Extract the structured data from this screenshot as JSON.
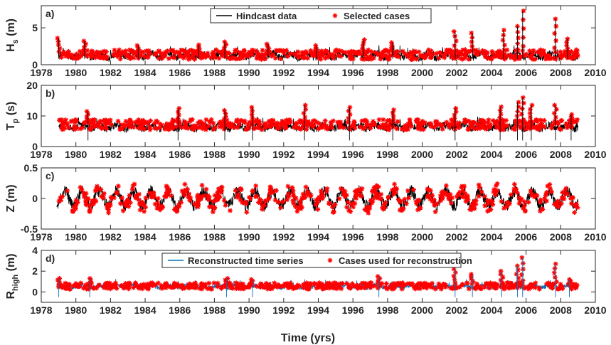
{
  "figure": {
    "xlabel": "Time (yrs)"
  },
  "colors": {
    "hindcast": "#000000",
    "selected": "#ff0000",
    "reconstructed": "#0072bd",
    "axes": "#262626"
  },
  "chart_data": [
    {
      "panel_label": "a)",
      "type": "line",
      "ylabel_main": "H",
      "ylabel_sub": "s",
      "ylabel_unit": "(m)",
      "xlim": [
        1978,
        2010
      ],
      "ylim": [
        0,
        8
      ],
      "xticks": [
        1978,
        1980,
        1982,
        1984,
        1986,
        1988,
        1990,
        1992,
        1994,
        1996,
        1998,
        2000,
        2002,
        2004,
        2006,
        2008,
        2010
      ],
      "yticks": [
        0,
        5
      ],
      "legend_position": "top-center",
      "series": [
        {
          "name": "Hindcast data",
          "kind": "line",
          "color": "#000000",
          "range": [
            1979,
            2009
          ],
          "base": 1.2,
          "amp": 1.0,
          "seasonal": 0.3
        },
        {
          "name": "Selected cases",
          "kind": "markers",
          "color": "#ff0000",
          "range": [
            1979,
            2009
          ],
          "base": 1.3,
          "amp": 1.2
        }
      ],
      "peaks": [
        [
          1979.0,
          3.6
        ],
        [
          1980.5,
          3.2
        ],
        [
          1983.6,
          2.6
        ],
        [
          1987.1,
          2.7
        ],
        [
          1988.6,
          3.1
        ],
        [
          1991.1,
          2.8
        ],
        [
          1993.9,
          2.6
        ],
        [
          1996.6,
          3.4
        ],
        [
          1998.3,
          3.0
        ],
        [
          2001.9,
          4.5
        ],
        [
          2002.9,
          4.3
        ],
        [
          2004.7,
          4.7
        ],
        [
          2005.5,
          5.2
        ],
        [
          2005.8,
          7.3
        ],
        [
          2007.7,
          6.2
        ],
        [
          2008.4,
          3.5
        ]
      ]
    },
    {
      "panel_label": "b)",
      "type": "line",
      "ylabel_main": "T",
      "ylabel_sub": "p",
      "ylabel_unit": "(s)",
      "xlim": [
        1978,
        2010
      ],
      "ylim": [
        0,
        20
      ],
      "xticks": [
        1978,
        1980,
        1982,
        1984,
        1986,
        1988,
        1990,
        1992,
        1994,
        1996,
        1998,
        2000,
        2002,
        2004,
        2006,
        2008,
        2010
      ],
      "yticks": [
        0,
        10,
        20
      ],
      "series": [
        {
          "name": "Hindcast data",
          "kind": "line",
          "color": "#000000",
          "range": [
            1979,
            2009
          ],
          "base": 6.3,
          "amp": 2.5,
          "seasonal": 0.6
        },
        {
          "name": "Selected cases",
          "kind": "markers",
          "color": "#ff0000",
          "range": [
            1979,
            2009
          ],
          "base": 7.0,
          "amp": 3.0
        }
      ],
      "peaks": [
        [
          1980.7,
          11.5
        ],
        [
          1985.9,
          12.5
        ],
        [
          1988.6,
          11.8
        ],
        [
          1990.2,
          12.8
        ],
        [
          1993.2,
          13.5
        ],
        [
          1995.8,
          12.8
        ],
        [
          1998.3,
          12.0
        ],
        [
          2001.9,
          12.5
        ],
        [
          2004.5,
          13.0
        ],
        [
          2005.5,
          14.5
        ],
        [
          2005.8,
          16.0
        ],
        [
          2006.3,
          13.5
        ],
        [
          2007.7,
          13.5
        ],
        [
          2008.6,
          10.5
        ]
      ]
    },
    {
      "panel_label": "c)",
      "type": "line",
      "ylabel_main": "Z",
      "ylabel_sub": "",
      "ylabel_unit": "(m)",
      "xlim": [
        1978,
        2010
      ],
      "ylim": [
        -0.5,
        0.5
      ],
      "xticks": [
        1978,
        1980,
        1982,
        1984,
        1986,
        1988,
        1990,
        1992,
        1994,
        1996,
        1998,
        2000,
        2002,
        2004,
        2006,
        2008,
        2010
      ],
      "yticks": [
        -0.5,
        0,
        0.5
      ],
      "series": [
        {
          "name": "Hindcast data",
          "kind": "line",
          "color": "#000000",
          "range": [
            1978.9,
            2009
          ],
          "seasonal_amp": 0.12,
          "noise": 0.1
        },
        {
          "name": "Selected cases",
          "kind": "markers",
          "color": "#ff0000",
          "range": [
            1978.9,
            2009
          ],
          "seasonal_amp": 0.12,
          "noise": 0.11
        }
      ],
      "peaks": []
    },
    {
      "panel_label": "d)",
      "type": "line",
      "ylabel_main": "R",
      "ylabel_sub": "high",
      "ylabel_unit": "(m)",
      "xlim": [
        1978,
        2010
      ],
      "ylim": [
        -1,
        4
      ],
      "xticks": [
        1978,
        1980,
        1982,
        1984,
        1986,
        1988,
        1990,
        1992,
        1994,
        1996,
        1998,
        2000,
        2002,
        2004,
        2006,
        2008,
        2010
      ],
      "yticks": [
        0,
        2,
        4
      ],
      "legend_position": "top-center",
      "series": [
        {
          "name": "Reconstructed time series",
          "kind": "line",
          "color": "#0072bd",
          "range": [
            1979,
            2009
          ],
          "base": 0.5,
          "amp": 0.45,
          "seasonal": 0.1
        },
        {
          "name": "Cases used for reconstruction",
          "kind": "markers",
          "color": "#ff0000",
          "range": [
            1979,
            2009
          ],
          "base": 0.55,
          "amp": 0.55
        }
      ],
      "peaks": [
        [
          1979.0,
          1.3
        ],
        [
          1980.8,
          1.3
        ],
        [
          1988.7,
          1.3
        ],
        [
          1990.2,
          1.2
        ],
        [
          1997.5,
          1.5
        ],
        [
          2001.9,
          2.2
        ],
        [
          2002.9,
          1.7
        ],
        [
          2004.6,
          2.0
        ],
        [
          2005.5,
          2.5
        ],
        [
          2005.8,
          3.3
        ],
        [
          2007.7,
          2.7
        ],
        [
          2008.5,
          1.2
        ]
      ]
    }
  ]
}
